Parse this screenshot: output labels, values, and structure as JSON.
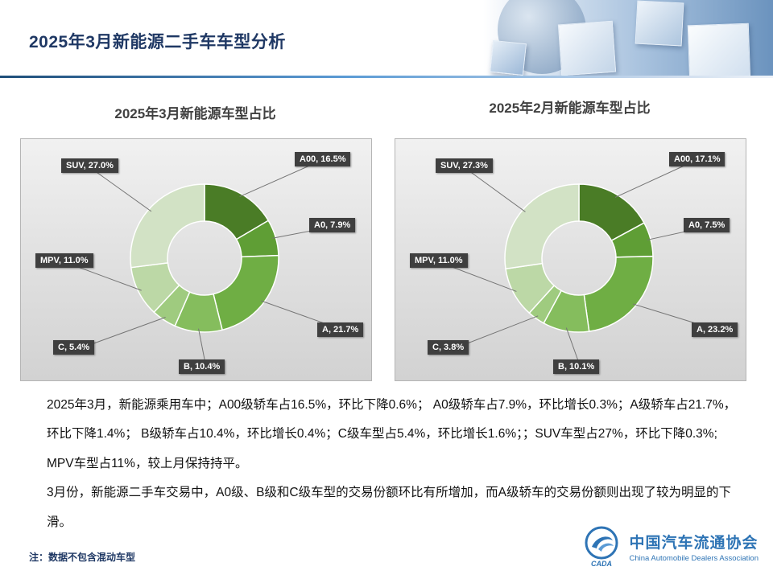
{
  "slide": {
    "title": "2025年3月新能源二手车车型分析"
  },
  "chart_data": [
    {
      "type": "pie",
      "subtype": "donut",
      "title": "2025年3月新能源车型占比",
      "categories": [
        "A00",
        "A0",
        "A",
        "B",
        "C",
        "MPV",
        "SUV"
      ],
      "values": [
        16.5,
        7.9,
        21.7,
        10.4,
        5.4,
        11.0,
        27.0
      ],
      "legend": "none",
      "data_labels": [
        "A00, 16.5%",
        "A0, 7.9%",
        "A, 21.7%",
        "B, 10.4%",
        "C, 5.4%",
        "MPV, 11.0%",
        "SUV, 27.0%"
      ]
    },
    {
      "type": "pie",
      "subtype": "donut",
      "title": "2025年2月新能源车型占比",
      "categories": [
        "A00",
        "A0",
        "A",
        "B",
        "C",
        "MPV",
        "SUV"
      ],
      "values": [
        17.1,
        7.5,
        23.2,
        10.1,
        3.8,
        11.0,
        27.3
      ],
      "legend": "none",
      "data_labels": [
        "A00, 17.1%",
        "A0, 7.5%",
        "A, 23.2%",
        "B, 10.1%",
        "C, 3.8%",
        "MPV, 11.0%",
        "SUV, 27.3%"
      ]
    }
  ],
  "body": {
    "p1": "2025年3月，新能源乘用车中；A00级轿车占16.5%，环比下降0.6%； A0级轿车占7.9%，环比增长0.3%；A级轿车占21.7%，环比下降1.4%； B级轿车占10.4%，环比增长0.4%；C级车型占5.4%，环比增长1.6%；；SUV车型占27%，环比下降0.3%; MPV车型占11%，较上月保持持平。",
    "p2": "3月份，新能源二手车交易中，A0级、B级和C级车型的交易份额环比有所增加，而A级轿车的交易份额则出现了较为明显的下滑。"
  },
  "note": "注：数据不包含混动车型",
  "logo": {
    "name_cn": "中国汽车流通协会",
    "name_en": "China Automobile Dealers Association",
    "cada": "CADA"
  },
  "colors": {
    "accent": "#2e74b5",
    "title": "#1f3864",
    "label_bg": "#3f3f3f",
    "leader_line": "#757575",
    "slice_palette": [
      "#4a7c26",
      "#5f9e35",
      "#6fae44",
      "#85bd5d",
      "#9fcb7f",
      "#bcd8a6",
      "#d2e2c5"
    ]
  }
}
